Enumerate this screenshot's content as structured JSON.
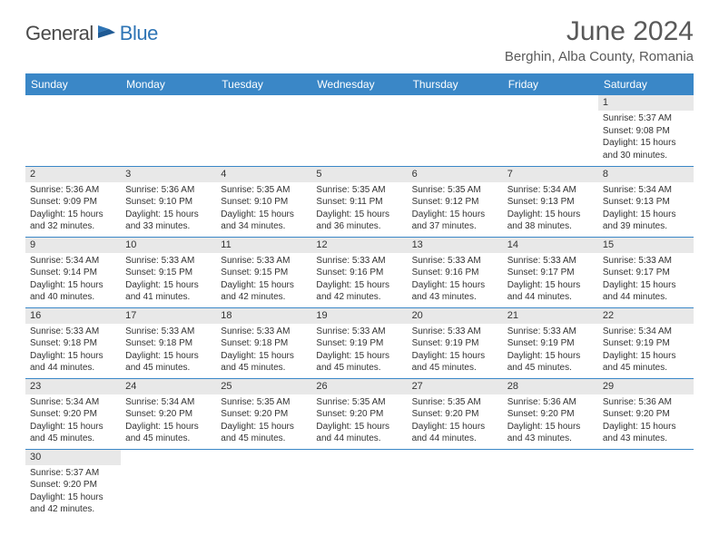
{
  "logo": {
    "text_general": "General",
    "text_blue": "Blue"
  },
  "title": "June 2024",
  "location": "Berghin, Alba County, Romania",
  "colors": {
    "header_bg": "#3a87c7",
    "header_text": "#ffffff",
    "daynum_bg": "#e8e8e8",
    "cell_border": "#3a87c7",
    "title_color": "#595959",
    "logo_blue": "#2e74b5",
    "logo_gray": "#4a4a4a"
  },
  "day_headers": [
    "Sunday",
    "Monday",
    "Tuesday",
    "Wednesday",
    "Thursday",
    "Friday",
    "Saturday"
  ],
  "weeks": [
    [
      null,
      null,
      null,
      null,
      null,
      null,
      {
        "n": "1",
        "sunrise": "5:37 AM",
        "sunset": "9:08 PM",
        "daylight": "15 hours and 30 minutes."
      }
    ],
    [
      {
        "n": "2",
        "sunrise": "5:36 AM",
        "sunset": "9:09 PM",
        "daylight": "15 hours and 32 minutes."
      },
      {
        "n": "3",
        "sunrise": "5:36 AM",
        "sunset": "9:10 PM",
        "daylight": "15 hours and 33 minutes."
      },
      {
        "n": "4",
        "sunrise": "5:35 AM",
        "sunset": "9:10 PM",
        "daylight": "15 hours and 34 minutes."
      },
      {
        "n": "5",
        "sunrise": "5:35 AM",
        "sunset": "9:11 PM",
        "daylight": "15 hours and 36 minutes."
      },
      {
        "n": "6",
        "sunrise": "5:35 AM",
        "sunset": "9:12 PM",
        "daylight": "15 hours and 37 minutes."
      },
      {
        "n": "7",
        "sunrise": "5:34 AM",
        "sunset": "9:13 PM",
        "daylight": "15 hours and 38 minutes."
      },
      {
        "n": "8",
        "sunrise": "5:34 AM",
        "sunset": "9:13 PM",
        "daylight": "15 hours and 39 minutes."
      }
    ],
    [
      {
        "n": "9",
        "sunrise": "5:34 AM",
        "sunset": "9:14 PM",
        "daylight": "15 hours and 40 minutes."
      },
      {
        "n": "10",
        "sunrise": "5:33 AM",
        "sunset": "9:15 PM",
        "daylight": "15 hours and 41 minutes."
      },
      {
        "n": "11",
        "sunrise": "5:33 AM",
        "sunset": "9:15 PM",
        "daylight": "15 hours and 42 minutes."
      },
      {
        "n": "12",
        "sunrise": "5:33 AM",
        "sunset": "9:16 PM",
        "daylight": "15 hours and 42 minutes."
      },
      {
        "n": "13",
        "sunrise": "5:33 AM",
        "sunset": "9:16 PM",
        "daylight": "15 hours and 43 minutes."
      },
      {
        "n": "14",
        "sunrise": "5:33 AM",
        "sunset": "9:17 PM",
        "daylight": "15 hours and 44 minutes."
      },
      {
        "n": "15",
        "sunrise": "5:33 AM",
        "sunset": "9:17 PM",
        "daylight": "15 hours and 44 minutes."
      }
    ],
    [
      {
        "n": "16",
        "sunrise": "5:33 AM",
        "sunset": "9:18 PM",
        "daylight": "15 hours and 44 minutes."
      },
      {
        "n": "17",
        "sunrise": "5:33 AM",
        "sunset": "9:18 PM",
        "daylight": "15 hours and 45 minutes."
      },
      {
        "n": "18",
        "sunrise": "5:33 AM",
        "sunset": "9:18 PM",
        "daylight": "15 hours and 45 minutes."
      },
      {
        "n": "19",
        "sunrise": "5:33 AM",
        "sunset": "9:19 PM",
        "daylight": "15 hours and 45 minutes."
      },
      {
        "n": "20",
        "sunrise": "5:33 AM",
        "sunset": "9:19 PM",
        "daylight": "15 hours and 45 minutes."
      },
      {
        "n": "21",
        "sunrise": "5:33 AM",
        "sunset": "9:19 PM",
        "daylight": "15 hours and 45 minutes."
      },
      {
        "n": "22",
        "sunrise": "5:34 AM",
        "sunset": "9:19 PM",
        "daylight": "15 hours and 45 minutes."
      }
    ],
    [
      {
        "n": "23",
        "sunrise": "5:34 AM",
        "sunset": "9:20 PM",
        "daylight": "15 hours and 45 minutes."
      },
      {
        "n": "24",
        "sunrise": "5:34 AM",
        "sunset": "9:20 PM",
        "daylight": "15 hours and 45 minutes."
      },
      {
        "n": "25",
        "sunrise": "5:35 AM",
        "sunset": "9:20 PM",
        "daylight": "15 hours and 45 minutes."
      },
      {
        "n": "26",
        "sunrise": "5:35 AM",
        "sunset": "9:20 PM",
        "daylight": "15 hours and 44 minutes."
      },
      {
        "n": "27",
        "sunrise": "5:35 AM",
        "sunset": "9:20 PM",
        "daylight": "15 hours and 44 minutes."
      },
      {
        "n": "28",
        "sunrise": "5:36 AM",
        "sunset": "9:20 PM",
        "daylight": "15 hours and 43 minutes."
      },
      {
        "n": "29",
        "sunrise": "5:36 AM",
        "sunset": "9:20 PM",
        "daylight": "15 hours and 43 minutes."
      }
    ],
    [
      {
        "n": "30",
        "sunrise": "5:37 AM",
        "sunset": "9:20 PM",
        "daylight": "15 hours and 42 minutes."
      },
      null,
      null,
      null,
      null,
      null,
      null
    ]
  ],
  "labels": {
    "sunrise": "Sunrise:",
    "sunset": "Sunset:",
    "daylight": "Daylight:"
  }
}
